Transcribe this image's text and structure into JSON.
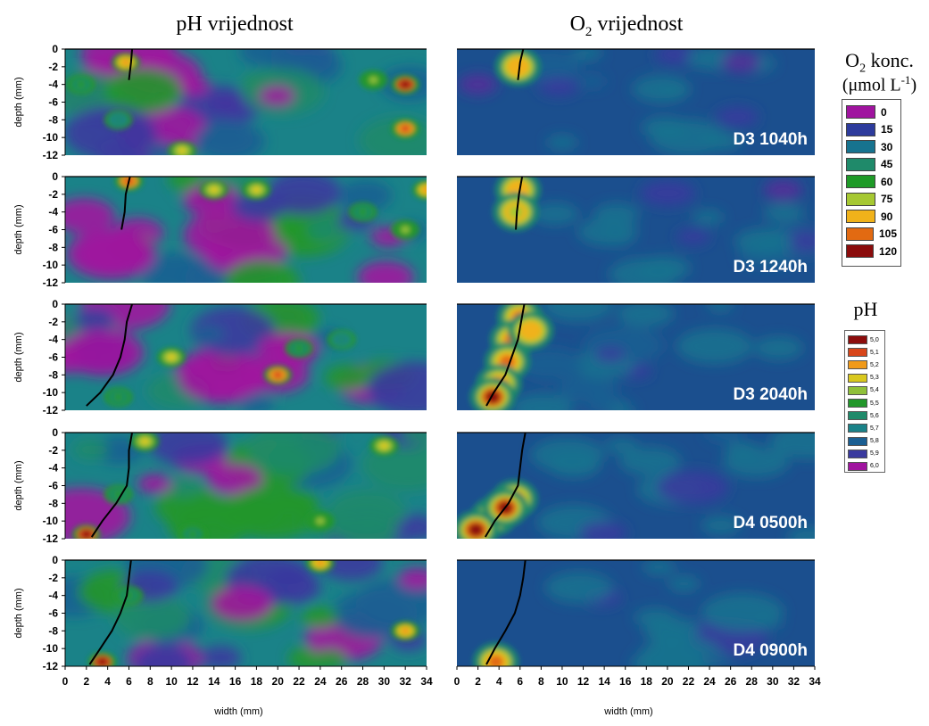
{
  "titles": {
    "left_main": "pH vrijednost",
    "right_main": "O",
    "right_sub": "2",
    "right_rest": " vrijednost"
  },
  "o2_legend": {
    "title_main": "O",
    "title_sub": "2",
    "title_rest": " konc.",
    "unit_open": "(μmol L",
    "unit_sup": "-1",
    "unit_close": ")",
    "entries": [
      {
        "label": "0",
        "color": "#a0149f"
      },
      {
        "label": "15",
        "color": "#2d3b9c"
      },
      {
        "label": "30",
        "color": "#17738f"
      },
      {
        "label": "45",
        "color": "#1f8a6a"
      },
      {
        "label": "60",
        "color": "#1e9a27"
      },
      {
        "label": "75",
        "color": "#a6c832"
      },
      {
        "label": "90",
        "color": "#f0b21a"
      },
      {
        "label": "105",
        "color": "#e26a12"
      },
      {
        "label": "120",
        "color": "#8b0c0c"
      }
    ]
  },
  "ph_legend": {
    "title": "pH",
    "entries": [
      {
        "label": "5,0",
        "color": "#8b0c0c"
      },
      {
        "label": "5,1",
        "color": "#d8461a"
      },
      {
        "label": "5,2",
        "color": "#f09a1a"
      },
      {
        "label": "5,3",
        "color": "#d9c81e"
      },
      {
        "label": "5,4",
        "color": "#8fc03a"
      },
      {
        "label": "5,5",
        "color": "#22972a"
      },
      {
        "label": "5,6",
        "color": "#1f8a6a"
      },
      {
        "label": "5,7",
        "color": "#1a8288"
      },
      {
        "label": "5,8",
        "color": "#1b5f92"
      },
      {
        "label": "5,9",
        "color": "#3a3a9e"
      },
      {
        "label": "6,0",
        "color": "#a0149f"
      }
    ]
  },
  "chart_data": {
    "type": "heatmap",
    "xlabel": "width (mm)",
    "ylabel": "depth (mm)",
    "xlim": [
      0,
      34
    ],
    "ylim": [
      -12,
      0
    ],
    "xticks": [
      "0",
      "2",
      "4",
      "6",
      "8",
      "10",
      "12",
      "14",
      "16",
      "18",
      "20",
      "22",
      "24",
      "26",
      "28",
      "30",
      "32",
      "34"
    ],
    "yticks": [
      "0",
      "-2",
      "-4",
      "-6",
      "-8",
      "-10",
      "-12"
    ],
    "panels": [
      {
        "label": "D3 1040h",
        "root_ph": [
          [
            6.3,
            0
          ],
          [
            6.2,
            -1.5
          ],
          [
            6.0,
            -3.5
          ]
        ],
        "root_o2": [
          [
            6.3,
            0
          ],
          [
            6.0,
            -1.5
          ],
          [
            5.8,
            -3.5
          ]
        ],
        "ph_hot": [
          [
            5.7,
            -1.5,
            5.2
          ],
          [
            1.5,
            -4,
            5.5
          ],
          [
            11,
            -11.5,
            5.3
          ],
          [
            32,
            -4,
            5.0
          ],
          [
            32,
            -9,
            5.1
          ],
          [
            29,
            -3.5,
            5.4
          ],
          [
            5,
            -8,
            5.6
          ]
        ],
        "o2_hot": [
          [
            5.8,
            -2,
            85
          ]
        ],
        "o2_purple": [
          [
            2,
            -4
          ],
          [
            27,
            -1.5
          ]
        ]
      },
      {
        "label": "D3 1240h",
        "root_ph": [
          [
            6.1,
            0
          ],
          [
            5.7,
            -2
          ],
          [
            5.6,
            -4
          ],
          [
            5.3,
            -6
          ]
        ],
        "root_o2": [
          [
            6.2,
            0
          ],
          [
            5.9,
            -2
          ],
          [
            5.7,
            -4
          ],
          [
            5.6,
            -6
          ]
        ],
        "ph_hot": [
          [
            6,
            -0.5,
            5.1
          ],
          [
            14,
            -1.5,
            5.3
          ],
          [
            18,
            -1.5,
            5.3
          ],
          [
            34,
            -1.5,
            5.2
          ],
          [
            32,
            -6,
            5.4
          ],
          [
            28,
            -4,
            5.5
          ]
        ],
        "o2_hot": [
          [
            5.8,
            -1.5,
            85
          ],
          [
            5.6,
            -4,
            75
          ]
        ],
        "o2_purple": [
          [
            31,
            -1.5
          ]
        ]
      },
      {
        "label": "D3 2040h",
        "root_ph": [
          [
            6.3,
            0
          ],
          [
            5.8,
            -2
          ],
          [
            5.6,
            -4
          ],
          [
            5.2,
            -6
          ],
          [
            4.5,
            -8
          ],
          [
            3.3,
            -10
          ],
          [
            2.0,
            -11.5
          ]
        ],
        "root_o2": [
          [
            6.4,
            0
          ],
          [
            6.1,
            -2
          ],
          [
            5.8,
            -4
          ],
          [
            5.2,
            -6
          ],
          [
            4.6,
            -8
          ],
          [
            3.5,
            -10
          ],
          [
            2.8,
            -11.5
          ]
        ],
        "ph_hot": [
          [
            10,
            -6,
            5.3
          ],
          [
            20,
            -8,
            5.1
          ],
          [
            22,
            -5,
            5.5
          ],
          [
            26,
            -4,
            5.6
          ],
          [
            5,
            -10.5,
            5.5
          ]
        ],
        "o2_hot": [
          [
            6,
            -1.5,
            105
          ],
          [
            5.3,
            -4,
            100
          ],
          [
            4.8,
            -6.5,
            100
          ],
          [
            4,
            -9,
            110
          ],
          [
            3.4,
            -10.5,
            120
          ],
          [
            7,
            -3,
            90
          ]
        ],
        "o2_purple": []
      },
      {
        "label": "D4 0500h",
        "root_ph": [
          [
            6.3,
            0
          ],
          [
            6.0,
            -2
          ],
          [
            6.0,
            -4
          ],
          [
            5.8,
            -6
          ],
          [
            4.8,
            -8
          ],
          [
            3.5,
            -10
          ],
          [
            2.5,
            -11.8
          ]
        ],
        "root_o2": [
          [
            6.5,
            0
          ],
          [
            6.2,
            -2
          ],
          [
            6.0,
            -4
          ],
          [
            5.8,
            -6
          ],
          [
            4.9,
            -8
          ],
          [
            3.6,
            -10
          ],
          [
            2.7,
            -11.8
          ]
        ],
        "ph_hot": [
          [
            7.5,
            -1,
            5.3
          ],
          [
            30,
            -1.5,
            5.3
          ],
          [
            24,
            -10,
            5.4
          ],
          [
            12,
            -11.5,
            5.5
          ],
          [
            2,
            -11.5,
            5.0
          ],
          [
            5,
            -7,
            5.5
          ]
        ],
        "o2_hot": [
          [
            5.5,
            -7.5,
            105
          ],
          [
            3.5,
            -9.5,
            120
          ],
          [
            1.8,
            -11,
            120
          ],
          [
            4.6,
            -8.5,
            115
          ]
        ],
        "o2_purple": []
      },
      {
        "label": "D4 0900h",
        "root_ph": [
          [
            6.2,
            0
          ],
          [
            6.0,
            -2
          ],
          [
            5.8,
            -4
          ],
          [
            5.2,
            -6
          ],
          [
            4.4,
            -8
          ],
          [
            3.3,
            -10
          ],
          [
            2.3,
            -11.8
          ]
        ],
        "root_o2": [
          [
            6.5,
            0
          ],
          [
            6.3,
            -2
          ],
          [
            6.0,
            -4
          ],
          [
            5.5,
            -6
          ],
          [
            4.6,
            -8
          ],
          [
            3.6,
            -10
          ],
          [
            2.8,
            -11.8
          ]
        ],
        "ph_hot": [
          [
            24,
            -0.3,
            5.2
          ],
          [
            32,
            -8,
            5.2
          ],
          [
            3.5,
            -11.5,
            5.0
          ],
          [
            6,
            -4,
            5.5
          ]
        ],
        "o2_hot": [
          [
            3.7,
            -11.5,
            105
          ]
        ],
        "o2_purple": []
      }
    ]
  }
}
